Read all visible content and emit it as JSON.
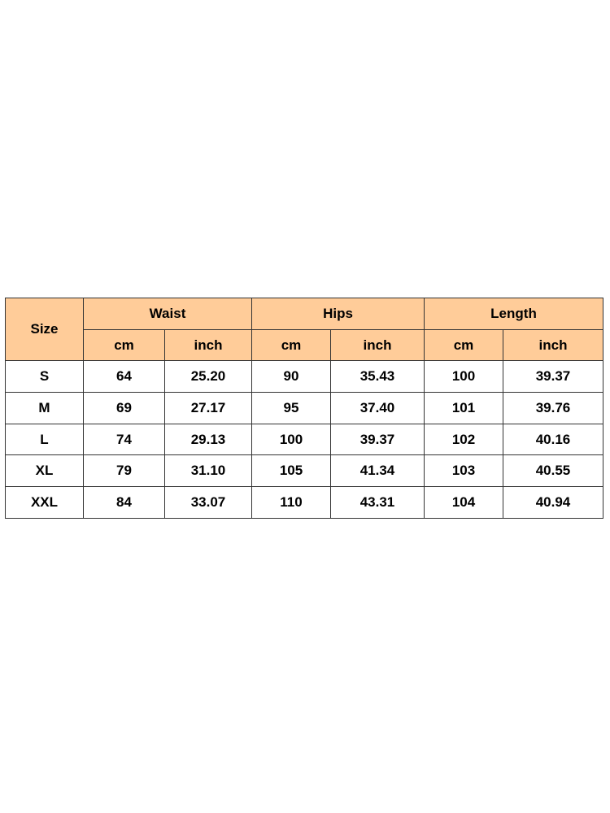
{
  "header_color": "#FFCC99",
  "table": {
    "size_label": "Size",
    "groups": [
      "Waist",
      "Hips",
      "Length"
    ],
    "units": [
      "cm",
      "inch",
      "cm",
      "inch",
      "cm",
      "inch"
    ],
    "rows": [
      [
        "S",
        "64",
        "25.20",
        "90",
        "35.43",
        "100",
        "39.37"
      ],
      [
        "M",
        "69",
        "27.17",
        "95",
        "37.40",
        "101",
        "39.76"
      ],
      [
        "L",
        "74",
        "29.13",
        "100",
        "39.37",
        "102",
        "40.16"
      ],
      [
        "XL",
        "79",
        "31.10",
        "105",
        "41.34",
        "103",
        "40.55"
      ],
      [
        "XXL",
        "84",
        "33.07",
        "110",
        "43.31",
        "104",
        "40.94"
      ]
    ]
  }
}
